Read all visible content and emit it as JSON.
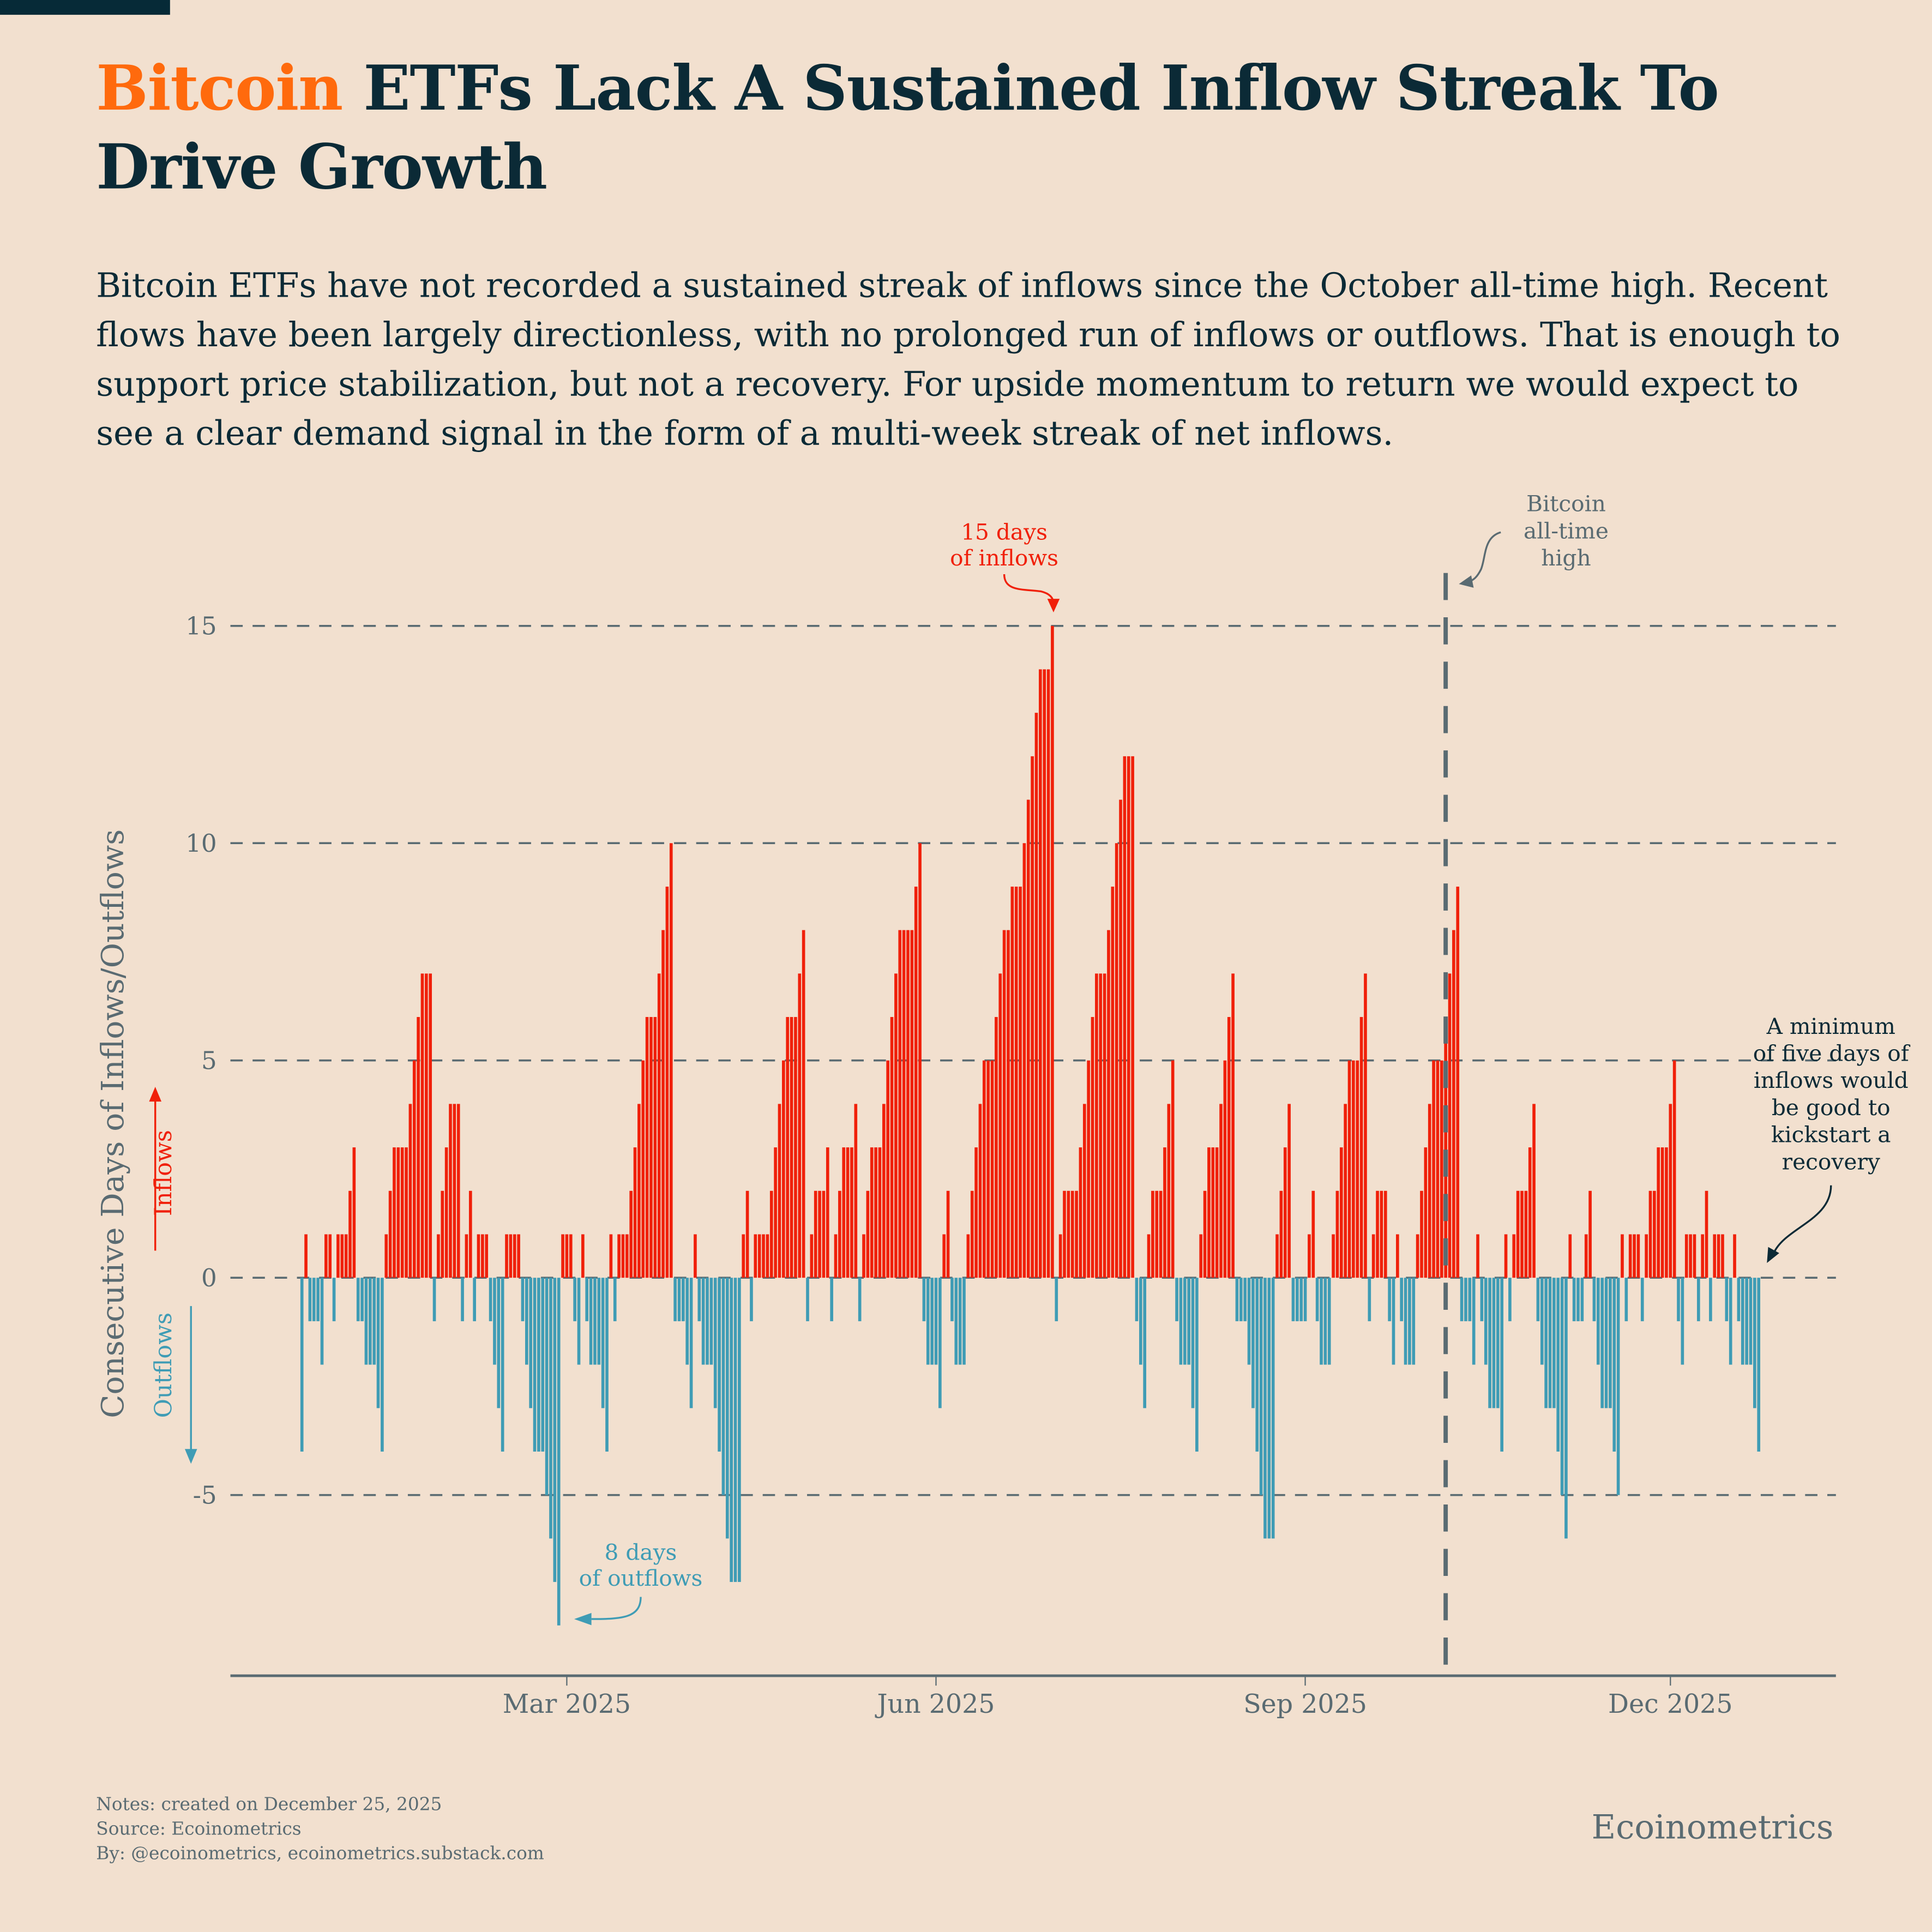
{
  "header": {
    "title_accent": "Bitcoin",
    "title_rest": " ETFs Lack A Sustained Inflow Streak To Drive Growth",
    "subtitle": "Bitcoin ETFs have not recorded a sustained streak of inflows since the October all-time high. Recent flows have been largely directionless, with no prolonged run of inflows or outflows. That is enough to support price stabilization, but not a recovery. For upside momentum to return we would expect to see a clear demand signal in the form of a multi-week streak of net inflows."
  },
  "footer": {
    "notes": "Notes: created on December 25, 2025",
    "source": "Source: Ecoinometrics",
    "by": "By: @ecoinometrics, ecoinometrics.substack.com",
    "brand": "Ecoinometrics"
  },
  "colors": {
    "background": "#f2e0cf",
    "title": "#0b2a36",
    "accent": "#ff6a0d",
    "inflow": "#f0200a",
    "outflow": "#3f9cb5",
    "axis": "#5a6b72"
  },
  "chart_data": {
    "type": "bar",
    "ylabel": "Consecutive Days of Inflows/Outflows",
    "ylabel_up": "Inflows",
    "ylabel_down": "Outflows",
    "ylim": [
      -9,
      16
    ],
    "yticks": [
      -5,
      0,
      5,
      10,
      15
    ],
    "ytick_labels": [
      "-5",
      "0",
      "5",
      "10",
      "15"
    ],
    "grid": "horizontal dashed",
    "xticks": [
      "2025-03-01",
      "2025-06-01",
      "2025-09-01",
      "2025-12-01"
    ],
    "xtick_labels": [
      "Mar 2025",
      "Jun 2025",
      "Sep 2025",
      "Dec 2025"
    ],
    "x_first": "2024-12-25",
    "x_last": "2025-12-23",
    "x_step": "1 day",
    "values": [
      -4,
      1,
      -1,
      -1,
      -1,
      -2,
      1,
      1,
      -1,
      1,
      1,
      1,
      2,
      3,
      -1,
      -1,
      -2,
      -2,
      -2,
      -3,
      -4,
      1,
      2,
      3,
      3,
      3,
      3,
      4,
      5,
      6,
      7,
      7,
      7,
      -1,
      1,
      2,
      3,
      4,
      4,
      4,
      -1,
      1,
      2,
      -1,
      1,
      1,
      1,
      -1,
      -2,
      -3,
      -4,
      1,
      1,
      1,
      1,
      -1,
      -2,
      -3,
      -4,
      -4,
      -4,
      -5,
      -6,
      -7,
      -8,
      1,
      1,
      1,
      -1,
      -2,
      1,
      -1,
      -2,
      -2,
      -2,
      -3,
      -4,
      1,
      -1,
      1,
      1,
      1,
      2,
      3,
      4,
      5,
      6,
      6,
      6,
      7,
      8,
      9,
      10,
      -1,
      -1,
      -1,
      -2,
      -3,
      1,
      -1,
      -2,
      -2,
      -2,
      -3,
      -4,
      -5,
      -6,
      -7,
      -7,
      -7,
      1,
      2,
      -1,
      1,
      1,
      1,
      1,
      2,
      3,
      4,
      5,
      6,
      6,
      6,
      7,
      8,
      -1,
      1,
      2,
      2,
      2,
      3,
      -1,
      1,
      2,
      3,
      3,
      3,
      4,
      -1,
      1,
      2,
      3,
      3,
      3,
      4,
      5,
      6,
      7,
      8,
      8,
      8,
      8,
      9,
      10,
      -1,
      -2,
      -2,
      -2,
      -3,
      1,
      2,
      -1,
      -2,
      -2,
      -2,
      1,
      2,
      3,
      4,
      5,
      5,
      5,
      6,
      7,
      8,
      8,
      9,
      9,
      9,
      10,
      11,
      12,
      13,
      14,
      14,
      14,
      15,
      -1,
      1,
      2,
      2,
      2,
      2,
      3,
      4,
      5,
      6,
      7,
      7,
      7,
      8,
      9,
      10,
      11,
      12,
      12,
      12,
      -1,
      -2,
      -3,
      1,
      2,
      2,
      2,
      3,
      4,
      5,
      -1,
      -2,
      -2,
      -2,
      -3,
      -4,
      1,
      2,
      3,
      3,
      3,
      4,
      5,
      6,
      7,
      -1,
      -1,
      -1,
      -2,
      -3,
      -4,
      -5,
      -6,
      -6,
      -6,
      1,
      2,
      3,
      4,
      -1,
      -1,
      -1,
      -1,
      1,
      2,
      -1,
      -2,
      -2,
      -2,
      1,
      2,
      3,
      4,
      5,
      5,
      5,
      6,
      7,
      -1,
      1,
      2,
      2,
      2,
      -1,
      -2,
      1,
      -1,
      -2,
      -2,
      -2,
      1,
      2,
      3,
      4,
      5,
      5,
      5,
      6,
      7,
      8,
      9,
      -1,
      -1,
      -1,
      -2,
      1,
      -1,
      -2,
      -3,
      -3,
      -3,
      -4,
      1,
      -1,
      1,
      2,
      2,
      2,
      3,
      4,
      -1,
      -2,
      -3,
      -3,
      -3,
      -4,
      -5,
      -6,
      1,
      -1,
      -1,
      -1,
      1,
      2,
      -1,
      -2,
      -3,
      -3,
      -3,
      -4,
      -5,
      1,
      -1,
      1,
      1,
      1,
      -1,
      1,
      2,
      2,
      3,
      3,
      3,
      4,
      5,
      -1,
      -2,
      1,
      1,
      1,
      -1,
      1,
      2,
      -1,
      1,
      1,
      1,
      -1,
      -2,
      1,
      -1,
      -2,
      -2,
      -2,
      -3,
      -4
    ],
    "vline": {
      "date": "2025-10-06",
      "label": "Bitcoin all-time high"
    },
    "annotations": [
      {
        "text": [
          "15 days",
          "of inflows"
        ],
        "points_to": "2025-06-30",
        "value": 15
      },
      {
        "text": [
          "8 days",
          "of outflows"
        ],
        "points_to": "2025-02-28",
        "value": -8
      },
      {
        "text": [
          "Bitcoin",
          "all-time",
          "high"
        ]
      },
      {
        "text": [
          "A minimum",
          "of five days of",
          "inflows would",
          "be good to",
          "kickstart a",
          "recovery"
        ]
      }
    ]
  }
}
